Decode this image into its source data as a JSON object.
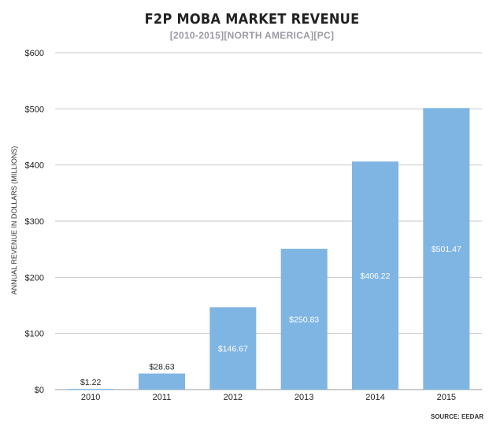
{
  "chart_data": {
    "type": "bar",
    "title": "F2P MOBA MARKET REVENUE",
    "subtitle": "[2010-2015][NORTH AMERICA][PC]",
    "xlabel": "",
    "ylabel": "ANNUAL REVENUE IN DOLLARS (MILLIONS)",
    "categories": [
      "2010",
      "2011",
      "2012",
      "2013",
      "2014",
      "2015"
    ],
    "values": [
      1.22,
      28.63,
      146.67,
      250.83,
      406.22,
      501.47
    ],
    "value_labels": [
      "$1.22",
      "$28.63",
      "$146.67",
      "$250.83",
      "$406.22",
      "$501.47"
    ],
    "ylim": [
      0,
      600
    ],
    "yticks": [
      0,
      100,
      200,
      300,
      400,
      500,
      600
    ],
    "ytick_labels": [
      "$0",
      "$100",
      "$200",
      "$300",
      "$400",
      "$500",
      "$600"
    ],
    "grid": true,
    "bar_color": "#7fb5e2",
    "source": "SOURCE: EEDAR"
  }
}
